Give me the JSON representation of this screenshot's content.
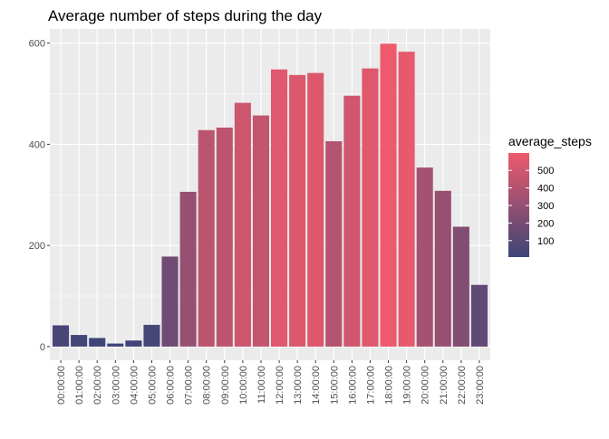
{
  "chart_data": {
    "type": "bar",
    "title": "Average number of steps during the day",
    "xlabel": "",
    "ylabel": "",
    "categories": [
      "00:00:00",
      "01:00:00",
      "02:00:00",
      "03:00:00",
      "04:00:00",
      "05:00:00",
      "06:00:00",
      "07:00:00",
      "08:00:00",
      "09:00:00",
      "10:00:00",
      "11:00:00",
      "12:00:00",
      "13:00:00",
      "14:00:00",
      "15:00:00",
      "16:00:00",
      "17:00:00",
      "18:00:00",
      "19:00:00",
      "20:00:00",
      "21:00:00",
      "22:00:00",
      "23:00:00"
    ],
    "values": [
      42,
      23,
      17,
      6,
      12,
      43,
      178,
      306,
      428,
      433,
      482,
      457,
      548,
      537,
      541,
      406,
      496,
      550,
      599,
      583,
      354,
      308,
      237,
      122
    ],
    "ylim": [
      -27,
      628
    ],
    "yticks": [
      0,
      200,
      400,
      600
    ],
    "grid": true,
    "legend": {
      "title": "average_steps",
      "placement": "right",
      "labels": [
        "500",
        "400",
        "300",
        "200",
        "100"
      ],
      "breaks": [
        500,
        400,
        300,
        200,
        100
      ],
      "range": [
        6,
        599
      ]
    },
    "colors": {
      "low": "#3D4577",
      "high": "#EE5A6C",
      "panel": "#EBEBEB",
      "grid_major": "#FFFFFF"
    }
  }
}
